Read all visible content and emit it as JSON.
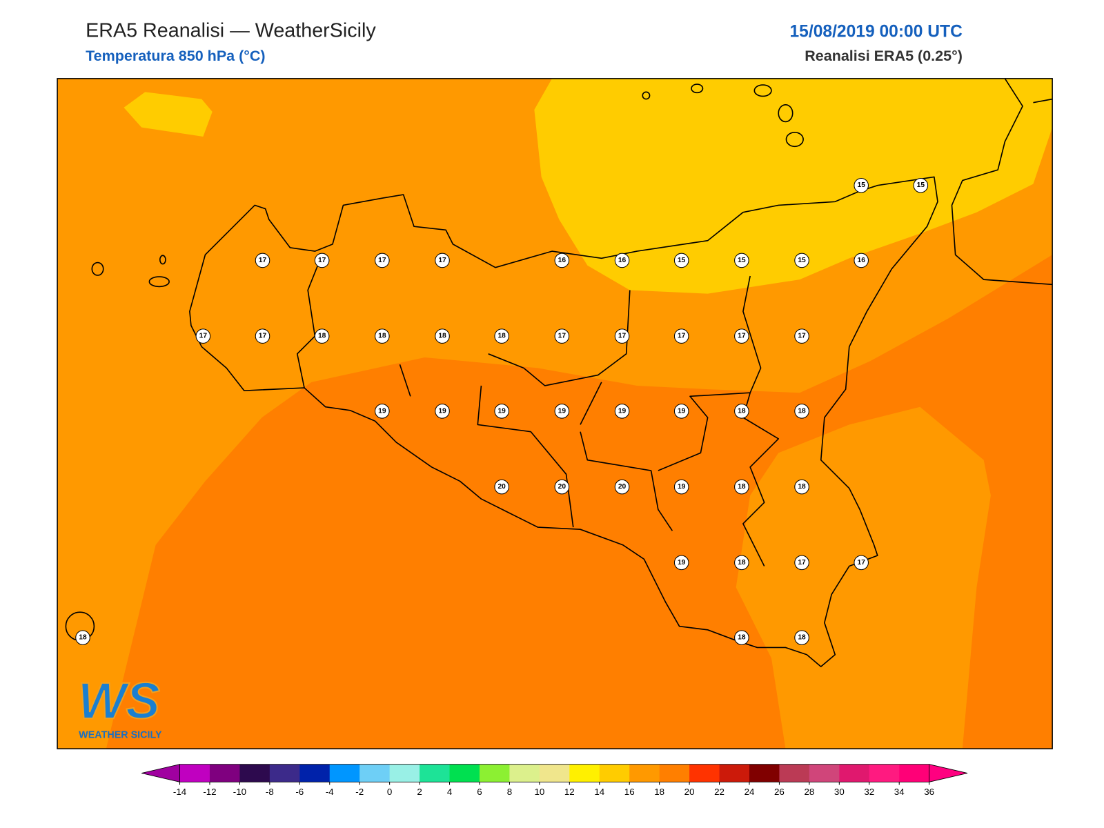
{
  "header": {
    "title": "ERA5 Reanalisi — WeatherSicily",
    "subtitle": "Temperatura 850 hPa (°C)",
    "date": "15/08/2019 00:00 UTC",
    "source": "Reanalisi ERA5 (0.25°)"
  },
  "logo": {
    "mark": "WS",
    "text": "WEATHER SICILY"
  },
  "stations": [
    15,
    15,
    17,
    17,
    17,
    17,
    16,
    16,
    15,
    15,
    15,
    16,
    17,
    17,
    18,
    18,
    18,
    18,
    17,
    17,
    17,
    17,
    17,
    19,
    19,
    19,
    19,
    19,
    19,
    18,
    18,
    20,
    20,
    20,
    19,
    18,
    18,
    19,
    18,
    17,
    17,
    18,
    18,
    18
  ],
  "colorbar": {
    "ticks": [
      -14,
      -12,
      -10,
      -8,
      -6,
      -4,
      -2,
      0,
      2,
      4,
      6,
      8,
      10,
      12,
      14,
      16,
      18,
      20,
      22,
      24,
      26,
      28,
      30,
      32,
      34,
      36
    ],
    "colors": [
      "#c000c0",
      "#7f007f",
      "#2d0a4e",
      "#3c2a8a",
      "#0022aa",
      "#0096ff",
      "#6ecff6",
      "#99f0e6",
      "#1de397",
      "#00e050",
      "#8cf032",
      "#dcf08c",
      "#f0e68c",
      "#fff000",
      "#ffcc00",
      "#ff9900",
      "#ff7f00",
      "#ff3300",
      "#cc1a0a",
      "#800000",
      "#bb3a55",
      "#d0457a",
      "#e0186e",
      "#ff1a80",
      "#ff0077"
    ],
    "under": "#a000a0",
    "over": "#ff0080"
  }
}
